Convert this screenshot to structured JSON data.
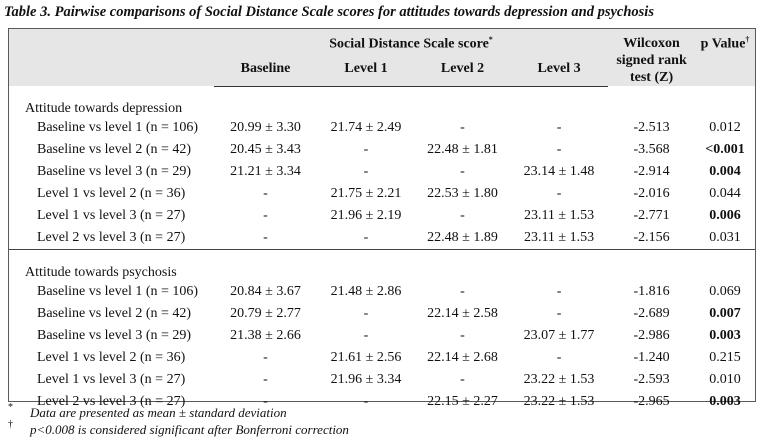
{
  "caption": "Table 3. Pairwise comparisons of Social Distance Scale scores for attitudes towards depression and psychosis",
  "header": {
    "group_label": "Social Distance Scale score",
    "group_mark": "*",
    "columns": [
      "Baseline",
      "Level 1",
      "Level 2",
      "Level 3"
    ],
    "wilcoxon_line1": "Wilcoxon",
    "wilcoxon_line2": "signed rank",
    "wilcoxon_line3": "test (Z)",
    "pvalue_label": "p Value",
    "pvalue_mark": "†"
  },
  "sections": [
    {
      "title": "Attitude towards depression",
      "rows": [
        {
          "label": "Baseline vs level 1 (n = 106)",
          "baseline": "20.99 ± 3.30",
          "level1": "21.74 ± 2.49",
          "level2": "-",
          "level3": "-",
          "z": "-2.513",
          "p": "0.012",
          "p_bold": false
        },
        {
          "label": "Baseline vs level 2 (n = 42)",
          "baseline": "20.45 ± 3.43",
          "level1": "-",
          "level2": "22.48 ± 1.81",
          "level3": "-",
          "z": "-3.568",
          "p": "<0.001",
          "p_bold": true
        },
        {
          "label": "Baseline vs level 3 (n = 29)",
          "baseline": "21.21 ± 3.34",
          "level1": "-",
          "level2": "-",
          "level3": "23.14 ± 1.48",
          "z": "-2.914",
          "p": "0.004",
          "p_bold": true
        },
        {
          "label": "Level 1 vs level 2 (n = 36)",
          "baseline": "-",
          "level1": "21.75 ± 2.21",
          "level2": "22.53 ± 1.80",
          "level3": "-",
          "z": "-2.016",
          "p": "0.044",
          "p_bold": false
        },
        {
          "label": "Level 1 vs level 3 (n = 27)",
          "baseline": "-",
          "level1": "21.96 ± 2.19",
          "level2": "-",
          "level3": "23.11 ± 1.53",
          "z": "-2.771",
          "p": "0.006",
          "p_bold": true
        },
        {
          "label": "Level 2 vs level 3 (n = 27)",
          "baseline": "-",
          "level1": "-",
          "level2": "22.48 ± 1.89",
          "level3": "23.11 ± 1.53",
          "z": "-2.156",
          "p": "0.031",
          "p_bold": false
        }
      ]
    },
    {
      "title": "Attitude towards psychosis",
      "rows": [
        {
          "label": "Baseline vs level 1 (n = 106)",
          "baseline": "20.84 ± 3.67",
          "level1": "21.48 ± 2.86",
          "level2": "-",
          "level3": "-",
          "z": "-1.816",
          "p": "0.069",
          "p_bold": false
        },
        {
          "label": "Baseline vs level 2 (n = 42)",
          "baseline": "20.79 ± 2.77",
          "level1": "-",
          "level2": "22.14 ± 2.58",
          "level3": "-",
          "z": "-2.689",
          "p": "0.007",
          "p_bold": true
        },
        {
          "label": "Baseline vs level 3 (n = 29)",
          "baseline": "21.38 ± 2.66",
          "level1": "-",
          "level2": "-",
          "level3": "23.07 ± 1.77",
          "z": "-2.986",
          "p": "0.003",
          "p_bold": true
        },
        {
          "label": "Level 1 vs level 2 (n = 36)",
          "baseline": "-",
          "level1": "21.61 ± 2.56",
          "level2": "22.14 ± 2.68",
          "level3": "-",
          "z": "-1.240",
          "p": "0.215",
          "p_bold": false
        },
        {
          "label": "Level 1 vs level 3 (n = 27)",
          "baseline": "-",
          "level1": "21.96 ± 3.34",
          "level2": "-",
          "level3": "23.22 ± 1.53",
          "z": "-2.593",
          "p": "0.010",
          "p_bold": false
        },
        {
          "label": "Level 2 vs level 3 (n = 27)",
          "baseline": "-",
          "level1": "-",
          "level2": "22.15 ± 2.27",
          "level3": "23.22 ± 1.53",
          "z": "-2.965",
          "p": "0.003",
          "p_bold": true
        }
      ]
    }
  ],
  "footnotes": [
    {
      "mark": "*",
      "text": "Data are presented as mean ± standard deviation"
    },
    {
      "mark": "†",
      "text": "p<0.008 is considered significant after Bonferroni correction"
    }
  ]
}
